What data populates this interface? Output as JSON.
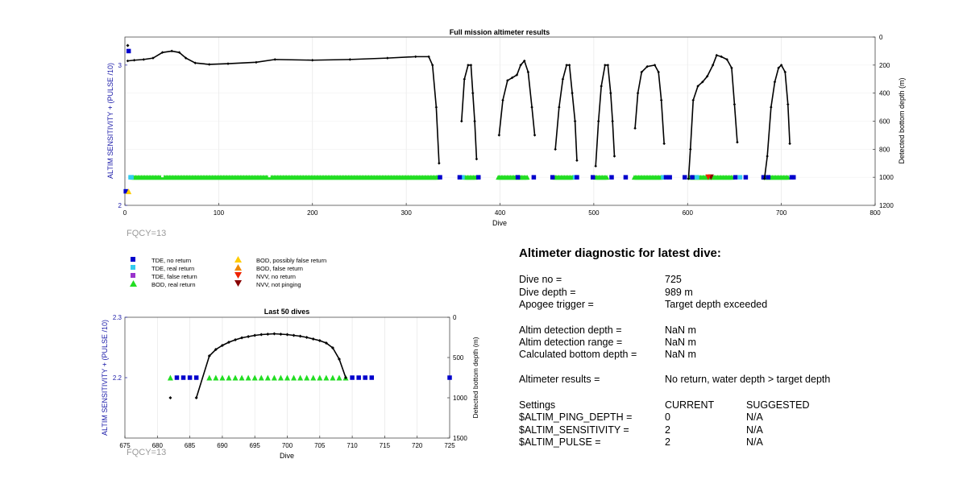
{
  "top_fqcy": "FQCY=13",
  "bottom_fqcy": "FQCY=13",
  "legend": [
    {
      "label": "TDE, no return",
      "marker": "square",
      "color": "#0000cc"
    },
    {
      "label": "TDE, real return",
      "marker": "square",
      "color": "#33ccee"
    },
    {
      "label": "TDE, false return",
      "marker": "square",
      "color": "#9933cc"
    },
    {
      "label": "BOD, real return",
      "marker": "triangle-up",
      "color": "#22dd22"
    },
    {
      "label": "BOD, possibly false return",
      "marker": "triangle-up",
      "color": "#ffcc00"
    },
    {
      "label": "BOD, false return",
      "marker": "triangle-up",
      "color": "#ee8800"
    },
    {
      "label": "NVV, no return",
      "marker": "triangle-down",
      "color": "#ee2200"
    },
    {
      "label": "NVV, not pinging",
      "marker": "triangle-down",
      "color": "#880000"
    }
  ],
  "diagnostic": {
    "title": "Altimeter diagnostic for latest dive:",
    "dive_no_label": "Dive no =",
    "dive_no_value": "725",
    "dive_depth_label": "Dive depth =",
    "dive_depth_value": "989 m",
    "apogee_label": "Apogee trigger =",
    "apogee_value": "Target depth exceeded",
    "altim_depth_label": "Altim detection depth =",
    "altim_depth_value": "NaN m",
    "altim_range_label": "Altim detection range =",
    "altim_range_value": "NaN m",
    "calc_bottom_label": "Calculated bottom depth =",
    "calc_bottom_value": "NaN m",
    "results_label": "Altimeter results =",
    "results_value": "No return, water depth > target depth",
    "settings_label": "Settings",
    "current_label": "CURRENT",
    "suggested_label": "SUGGESTED",
    "ping_depth_label": "$ALTIM_PING_DEPTH =",
    "ping_depth_current": "0",
    "ping_depth_suggested": "N/A",
    "sensitivity_label": "$ALTIM_SENSITIVITY =",
    "sensitivity_current": "2",
    "sensitivity_suggested": "N/A",
    "pulse_label": "$ALTIM_PULSE =",
    "pulse_current": "2",
    "pulse_suggested": "N/A"
  },
  "chart_data": [
    {
      "type": "scatter",
      "title": "Full mission altimeter results",
      "xlabel": "Dive",
      "ylabel": "ALTIM SENSITIVITY + (PULSE /10)",
      "y2label": "Detected bottom depth (m)",
      "xlim": [
        0,
        800
      ],
      "ylim": [
        2,
        3.2
      ],
      "y2lim": [
        0,
        1200
      ],
      "y2_reversed": true,
      "xticks": [
        0,
        100,
        200,
        300,
        400,
        500,
        600,
        700,
        800
      ],
      "yticks": [
        2,
        3
      ],
      "y2ticks": [
        0,
        200,
        400,
        600,
        800,
        1000,
        1200
      ],
      "grid": true,
      "depth_segments": [
        [
          [
            3,
            170
          ],
          [
            10,
            165
          ],
          [
            20,
            160
          ],
          [
            30,
            150
          ],
          [
            40,
            110
          ],
          [
            50,
            100
          ],
          [
            58,
            110
          ],
          [
            65,
            150
          ],
          [
            75,
            185
          ],
          [
            90,
            195
          ],
          [
            110,
            190
          ],
          [
            140,
            180
          ],
          [
            160,
            160
          ],
          [
            200,
            165
          ],
          [
            240,
            160
          ],
          [
            280,
            150
          ],
          [
            310,
            140
          ],
          [
            324,
            140
          ],
          [
            328,
            200
          ],
          [
            332,
            500
          ],
          [
            335,
            900
          ]
        ],
        [
          [
            359,
            600
          ],
          [
            362,
            300
          ],
          [
            366,
            200
          ],
          [
            369,
            200
          ],
          [
            371,
            400
          ],
          [
            373,
            600
          ],
          [
            375,
            870
          ]
        ],
        [
          [
            399,
            700
          ],
          [
            403,
            450
          ],
          [
            408,
            310
          ],
          [
            413,
            290
          ],
          [
            418,
            270
          ],
          [
            422,
            200
          ],
          [
            426,
            170
          ],
          [
            430,
            250
          ],
          [
            434,
            500
          ],
          [
            437,
            700
          ]
        ],
        [
          [
            459,
            800
          ],
          [
            463,
            500
          ],
          [
            467,
            300
          ],
          [
            471,
            200
          ],
          [
            474,
            200
          ],
          [
            477,
            400
          ],
          [
            480,
            600
          ],
          [
            482,
            880
          ]
        ],
        [
          [
            502,
            920
          ],
          [
            505,
            600
          ],
          [
            508,
            350
          ],
          [
            512,
            200
          ],
          [
            515,
            200
          ],
          [
            518,
            400
          ],
          [
            520,
            600
          ],
          [
            522,
            850
          ]
        ],
        [
          [
            544,
            650
          ],
          [
            547,
            400
          ],
          [
            551,
            250
          ],
          [
            557,
            210
          ],
          [
            565,
            200
          ],
          [
            569,
            250
          ],
          [
            572,
            450
          ],
          [
            575,
            760
          ]
        ],
        [
          [
            601,
            1010
          ],
          [
            603,
            800
          ],
          [
            606,
            450
          ],
          [
            611,
            350
          ],
          [
            616,
            320
          ],
          [
            621,
            280
          ],
          [
            627,
            200
          ],
          [
            631,
            130
          ],
          [
            636,
            140
          ],
          [
            642,
            160
          ],
          [
            647,
            220
          ],
          [
            650,
            480
          ],
          [
            653,
            750
          ]
        ],
        [
          [
            682,
            1010
          ],
          [
            685,
            850
          ],
          [
            689,
            500
          ],
          [
            693,
            320
          ],
          [
            697,
            220
          ],
          [
            700,
            200
          ],
          [
            704,
            250
          ],
          [
            707,
            480
          ],
          [
            709,
            760
          ]
        ]
      ],
      "bod_ranges": [
        [
          8,
          334
        ],
        [
          362,
          375
        ],
        [
          398,
          430
        ],
        [
          458,
          478
        ],
        [
          502,
          515
        ],
        [
          543,
          572
        ],
        [
          602,
          648
        ],
        [
          682,
          708
        ]
      ],
      "bod_notch_dives": [
        40,
        154
      ],
      "tde_no_return_dives": [
        336,
        357,
        377,
        419,
        436,
        456,
        482,
        499,
        519,
        534,
        577,
        581,
        597,
        605,
        651,
        662,
        681,
        686,
        711,
        713
      ],
      "tde_real_return_dives": [
        6,
        7,
        360,
        480,
        574,
        610,
        656
      ],
      "special_points": [
        {
          "x": 3,
          "depth": 60,
          "marker": "diamond",
          "color": "#000000"
        },
        {
          "x": 4,
          "y": 3.1,
          "marker": "square",
          "color": "#0000cc"
        },
        {
          "x": 1,
          "y": 2.1,
          "marker": "square",
          "color": "#0000cc"
        },
        {
          "x": 4,
          "y": 2.1,
          "marker": "triangle-up",
          "color": "#ffcc00"
        },
        {
          "x": 625,
          "y": 2.2,
          "marker": "triangle-down",
          "color": "#880000"
        },
        {
          "x": 622,
          "y": 2.2,
          "marker": "triangle-down",
          "color": "#ee2200"
        }
      ],
      "bod_y": 2.2
    },
    {
      "type": "scatter",
      "title": "Last 50 dives",
      "xlabel": "Dive",
      "ylabel": "ALTIM SENSITIVITY + (PULSE /10)",
      "y2label": "Detected bottom depth (m)",
      "xlim": [
        675,
        725
      ],
      "ylim": [
        2.1,
        2.3
      ],
      "y2lim": [
        0,
        1500
      ],
      "y2_reversed": true,
      "xticks": [
        675,
        680,
        685,
        690,
        695,
        700,
        705,
        710,
        715,
        720,
        725
      ],
      "ytick_labels": [
        {
          "v": 2.2,
          "t": "2.2"
        },
        {
          "v": 2.3,
          "t": "2.3"
        }
      ],
      "y2ticks": [
        0,
        500,
        1000,
        1500
      ],
      "grid": true,
      "depth_line": [
        [
          686,
          1000
        ],
        [
          688,
          480
        ],
        [
          689,
          400
        ],
        [
          690,
          350
        ],
        [
          691,
          310
        ],
        [
          692,
          280
        ],
        [
          693,
          255
        ],
        [
          694,
          240
        ],
        [
          695,
          225
        ],
        [
          696,
          215
        ],
        [
          697,
          210
        ],
        [
          698,
          205
        ],
        [
          699,
          210
        ],
        [
          700,
          215
        ],
        [
          701,
          225
        ],
        [
          702,
          235
        ],
        [
          703,
          250
        ],
        [
          704,
          270
        ],
        [
          705,
          290
        ],
        [
          706,
          320
        ],
        [
          707,
          380
        ],
        [
          708,
          520
        ],
        [
          709,
          750
        ]
      ],
      "isolated_depth": [
        [
          682,
          1000
        ]
      ],
      "bod_dives": [
        682,
        688,
        689,
        690,
        691,
        692,
        693,
        694,
        695,
        696,
        697,
        698,
        699,
        700,
        701,
        702,
        703,
        704,
        705,
        706,
        707,
        708,
        709
      ],
      "tde_no_return_dives": [
        683,
        684,
        685,
        686,
        710,
        711,
        712,
        713,
        725
      ],
      "bod_y": 2.2
    }
  ]
}
